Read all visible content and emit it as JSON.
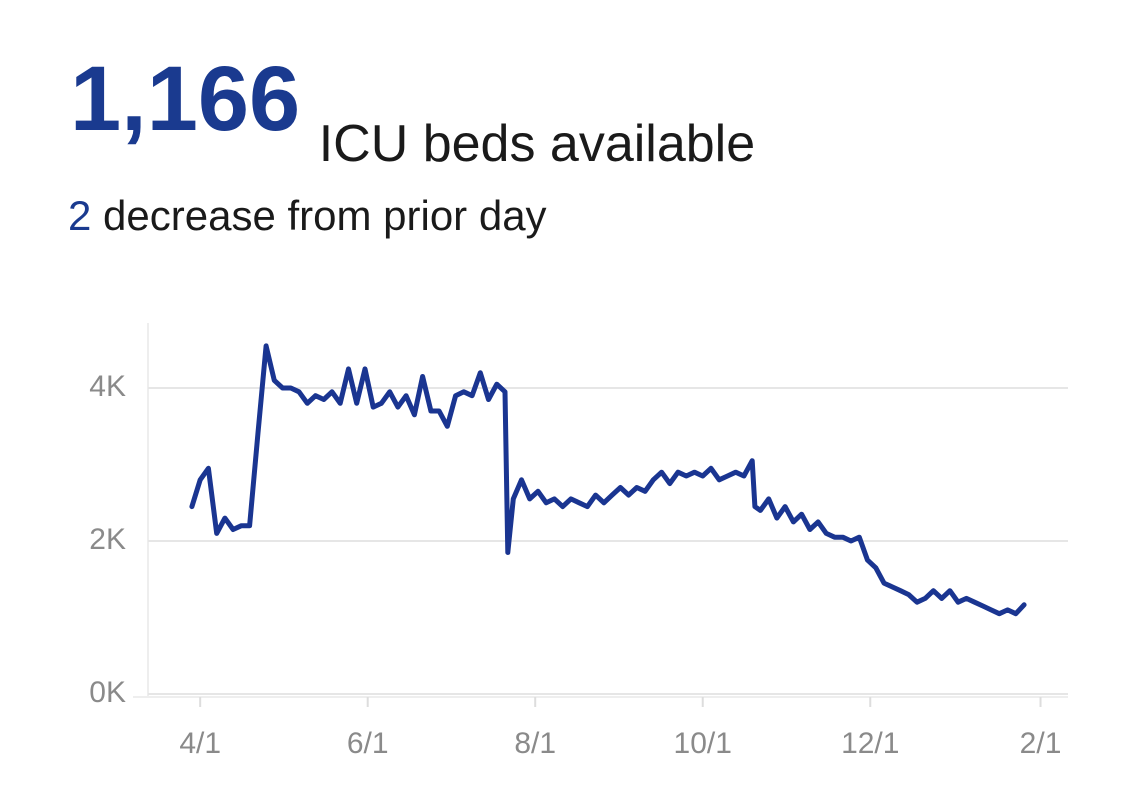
{
  "header": {
    "value": "1,166",
    "label": "ICU beds available",
    "change": "2",
    "change_label": "decrease from prior day"
  },
  "chart_data": {
    "type": "line",
    "color": "#1a3591",
    "grid": true,
    "xlim": [
      -19,
      316
    ],
    "xticks": [
      {
        "value": 0,
        "label": "4/1"
      },
      {
        "value": 61,
        "label": "6/1"
      },
      {
        "value": 122,
        "label": "8/1"
      },
      {
        "value": 183,
        "label": "10/1"
      },
      {
        "value": 244,
        "label": "12/1"
      },
      {
        "value": 306,
        "label": "2/1"
      }
    ],
    "ylim": [
      0,
      4850
    ],
    "yticks": [
      {
        "value": 0,
        "label": "0K"
      },
      {
        "value": 2000,
        "label": "2K"
      },
      {
        "value": 4000,
        "label": "4K"
      }
    ],
    "x": [
      -3,
      0,
      3,
      6,
      9,
      12,
      15,
      18,
      21,
      24,
      27,
      30,
      33,
      36,
      39,
      42,
      45,
      48,
      51,
      54,
      57,
      60,
      63,
      66,
      69,
      72,
      75,
      78,
      81,
      84,
      87,
      90,
      93,
      96,
      99,
      102,
      105,
      108,
      111,
      112,
      114,
      117,
      120,
      123,
      126,
      129,
      132,
      135,
      138,
      141,
      144,
      147,
      150,
      153,
      156,
      159,
      162,
      165,
      168,
      171,
      174,
      177,
      180,
      183,
      186,
      189,
      192,
      195,
      198,
      201,
      202,
      204,
      207,
      210,
      213,
      216,
      219,
      222,
      225,
      228,
      231,
      234,
      237,
      240,
      243,
      246,
      249,
      252,
      255,
      258,
      261,
      264,
      267,
      270,
      273,
      276,
      279,
      282,
      285,
      288,
      291,
      294,
      297,
      300
    ],
    "values": [
      2450,
      2800,
      2950,
      2100,
      2300,
      2150,
      2200,
      2200,
      3400,
      4550,
      4100,
      4000,
      4000,
      3950,
      3800,
      3900,
      3850,
      3950,
      3800,
      4250,
      3800,
      4250,
      3750,
      3800,
      3950,
      3750,
      3900,
      3650,
      4150,
      3700,
      3700,
      3500,
      3900,
      3950,
      3900,
      4200,
      3850,
      4050,
      3950,
      1850,
      2550,
      2800,
      2550,
      2650,
      2500,
      2550,
      2450,
      2550,
      2500,
      2450,
      2600,
      2500,
      2600,
      2700,
      2600,
      2700,
      2650,
      2800,
      2900,
      2750,
      2900,
      2850,
      2900,
      2850,
      2950,
      2800,
      2850,
      2900,
      2850,
      3050,
      2450,
      2400,
      2550,
      2300,
      2450,
      2250,
      2350,
      2150,
      2250,
      2100,
      2050,
      2050,
      2000,
      2050,
      1750,
      1650,
      1450,
      1400,
      1350,
      1300,
      1200,
      1250,
      1350,
      1250,
      1350,
      1200,
      1250,
      1200,
      1150,
      1100,
      1050,
      1100,
      1050,
      1166
    ]
  }
}
